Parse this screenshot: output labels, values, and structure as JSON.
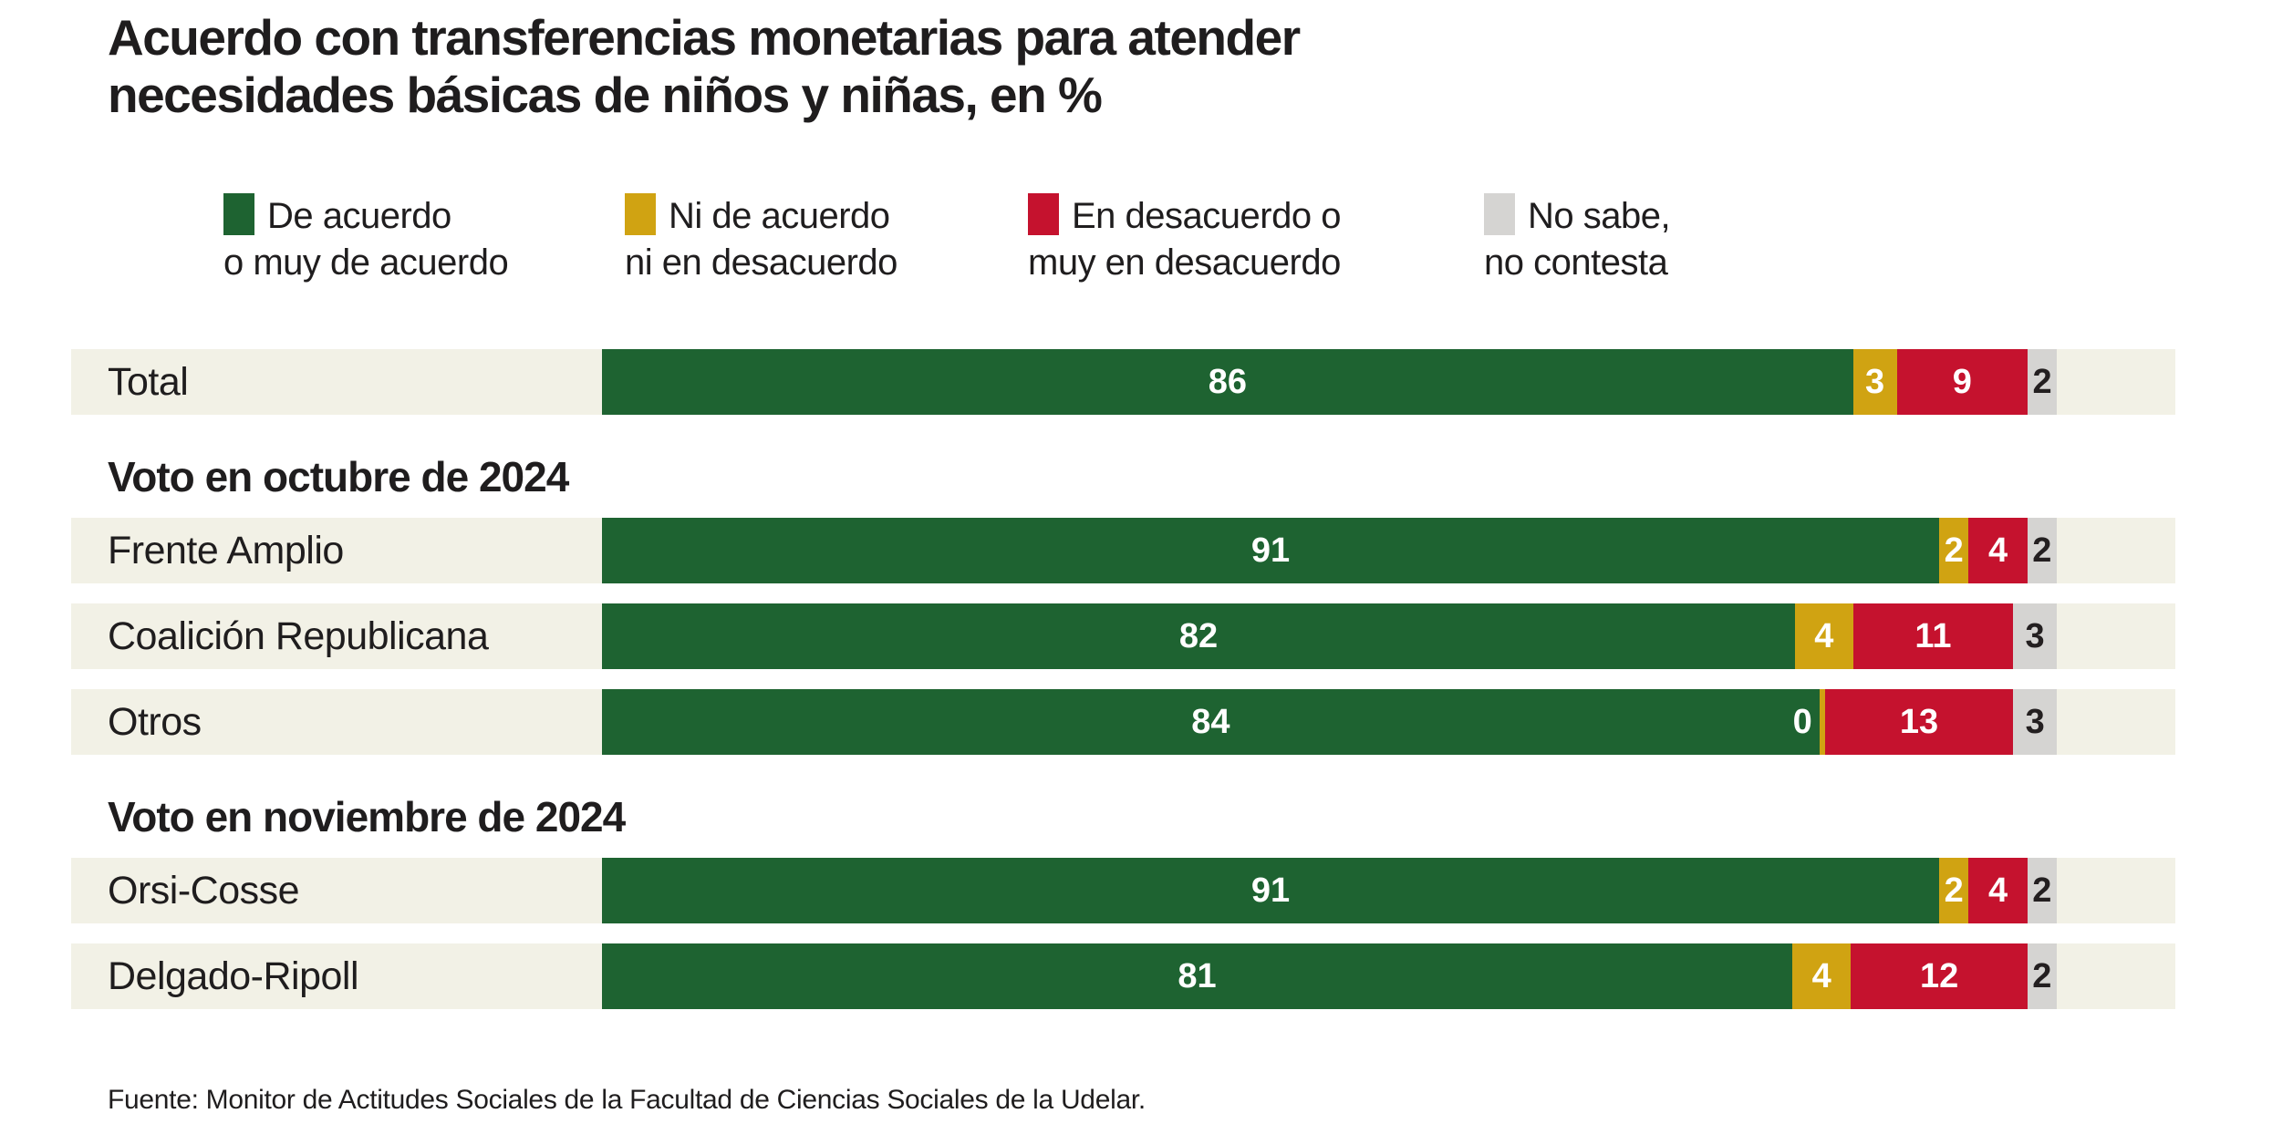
{
  "header": {
    "title_line1": "Acuerdo con transferencias monetarias para atender",
    "title_line2": "necesidades básicas de niños y niñas, en %"
  },
  "legend": [
    {
      "label_line1": "De acuerdo",
      "label_line2": "o muy de acuerdo",
      "color": "#1e6331"
    },
    {
      "label_line1": "Ni de acuerdo",
      "label_line2": "ni en desacuerdo",
      "color": "#d0a312"
    },
    {
      "label_line1": "En desacuerdo o",
      "label_line2": "muy en desacuerdo",
      "color": "#c5122e"
    },
    {
      "label_line1": "No sabe,",
      "label_line2": "no contesta",
      "color": "#d5d4d2"
    }
  ],
  "chart_data": {
    "type": "bar",
    "orientation": "horizontal",
    "stacked": true,
    "unit": "%",
    "xlim": [
      0,
      100
    ],
    "title": "Acuerdo con transferencias monetarias para atender necesidades básicas de niños y niñas, en %",
    "series_names": [
      "De acuerdo o muy de acuerdo",
      "Ni de acuerdo ni en desacuerdo",
      "En desacuerdo o muy en desacuerdo",
      "No sabe, no contesta"
    ],
    "series_keys": [
      "de-acuerdo",
      "ni-acuerdo-ni-desacuerdo",
      "en-desacuerdo",
      "no-sabe"
    ],
    "colors": [
      "#1e6331",
      "#d0a312",
      "#c5122e",
      "#d5d4d2"
    ],
    "rows": [
      {
        "type": "bar",
        "label": "Total",
        "values": [
          86,
          3,
          9,
          2
        ]
      },
      {
        "type": "section",
        "label": "Voto en octubre de 2024"
      },
      {
        "type": "bar",
        "label": "Frente Amplio",
        "values": [
          91,
          2,
          4,
          2
        ]
      },
      {
        "type": "bar",
        "label": "Coalición Republicana",
        "values": [
          82,
          4,
          11,
          3
        ]
      },
      {
        "type": "bar",
        "label": "Otros",
        "values": [
          84,
          0,
          13,
          3
        ]
      },
      {
        "type": "section",
        "label": "Voto en noviembre de 2024"
      },
      {
        "type": "bar",
        "label": "Orsi-Cosse",
        "values": [
          91,
          2,
          4,
          2
        ]
      },
      {
        "type": "bar",
        "label": "Delgado-Ripoll",
        "values": [
          81,
          4,
          12,
          2
        ]
      }
    ]
  },
  "footer": {
    "source": "Fuente: Monitor de Actitudes Sociales de la Facultad de Ciencias Sociales de la Udelar."
  },
  "theme": {
    "row_background": "#f2f1e6",
    "text_color": "#1f1d1e",
    "value_label_light": "#ffffff",
    "value_label_dark": "#231f20"
  }
}
